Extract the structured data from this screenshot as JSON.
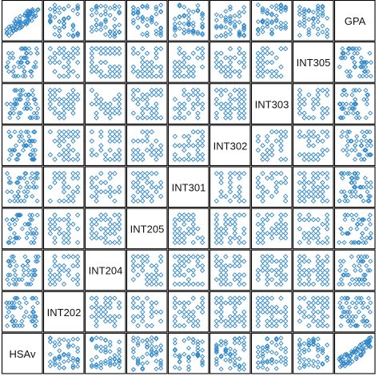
{
  "colors": {
    "point": "#2e86c8",
    "frame": "#000000",
    "background": "#ffffff"
  },
  "chart_data": {
    "type": "scatter",
    "variant": "scatterplot-matrix",
    "marker": "diamond-open",
    "variables": [
      "HSAv",
      "INT202",
      "INT204",
      "INT205",
      "INT301",
      "INT302",
      "INT303",
      "INT305",
      "GPA"
    ],
    "diagonal_order": "HSAv bottom-left to GPA top-right",
    "pattern": "off-diagonal panels show open diamond markers on a discrete grid of course grades; panels pairing with HSAv or GPA show denser columns/rows of points",
    "grid": false,
    "legend": "none"
  }
}
